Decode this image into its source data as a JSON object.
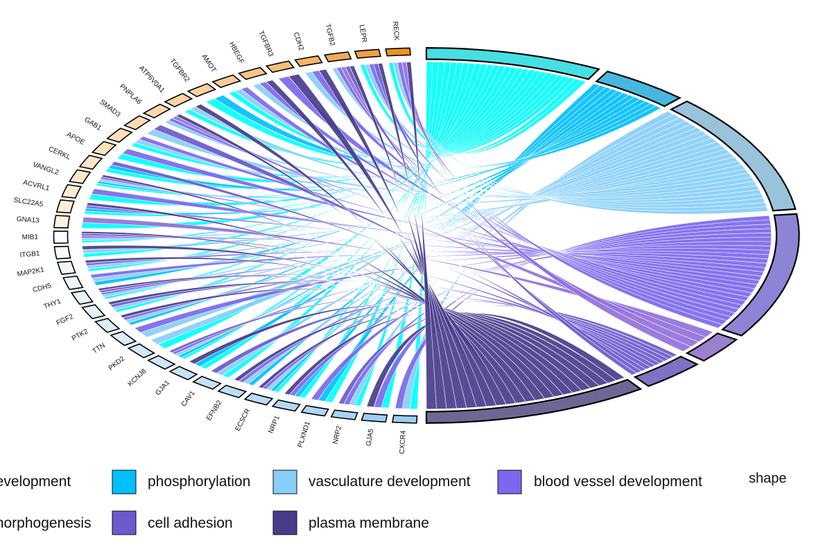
{
  "chart_data": {
    "type": "chord",
    "title": "",
    "genes": [
      "CXCR4",
      "GJA5",
      "NRP2",
      "PLXND1",
      "NRP1",
      "ECSCR",
      "EFNB2",
      "CAV1",
      "GJA1",
      "KCNJ8",
      "PKD2",
      "TTN",
      "PTK2",
      "FGF2",
      "THY1",
      "CDH5",
      "MAP2K1",
      "ITGB1",
      "MIB1",
      "GNA13",
      "SLC22A5",
      "ACVRL1",
      "VANGL2",
      "CERKL",
      "APOE",
      "GAB1",
      "SMAD3",
      "PNPLA6",
      "ATP6V0A1",
      "TGFBR2",
      "AMOT",
      "HBEGF",
      "TGFBR3",
      "CDH2",
      "TGFB2",
      "LEPR",
      "RECK"
    ],
    "gene_fill": [
      "#9fcdf2",
      "#9fcdf2",
      "#a9d3f3",
      "#aed5f4",
      "#b3d8f4",
      "#b9dbf5",
      "#bedef5",
      "#c4e1f6",
      "#c9e4f7",
      "#cee7f8",
      "#d3e9f8",
      "#d8ecf9",
      "#ddeffa",
      "#e2f1fa",
      "#e7f4fb",
      "#ecf6fc",
      "#f1f9fd",
      "#f6fbfe",
      "#fbfdff",
      "#fff1dd",
      "#ffedd6",
      "#ffebd1",
      "#ffe8cc",
      "#ffe5c6",
      "#ffe2c0",
      "#ffdfba",
      "#ffdbb3",
      "#fed8ad",
      "#fdd4a6",
      "#fcd09f",
      "#fbcb97",
      "#f9c48b",
      "#f7bd7e",
      "#f4b46c",
      "#f1aa58",
      "#eea144",
      "#ea961c"
    ],
    "terms": [
      {
        "name": "angiogenesis development",
        "color": "#00ffff",
        "arc": "#46dfe3",
        "value": 44
      },
      {
        "name": "phosphorylation",
        "color": "#00bfff",
        "arc": "#46b8df",
        "value": 22
      },
      {
        "name": "vasculature development",
        "color": "#87cefa",
        "arc": "#99c2db",
        "value": 60
      },
      {
        "name": "blood vessel development",
        "color": "#7b68ee",
        "arc": "#8d84d6",
        "value": 62
      },
      {
        "name": "tube morphogenesis",
        "color": "#9370db",
        "arc": "#9a80cf",
        "value": 13
      },
      {
        "name": "cell adhesion",
        "color": "#6a5acd",
        "arc": "#7c73c4",
        "value": 16
      },
      {
        "name": "plasma membrane",
        "color": "#483d8b",
        "arc": "#6d6893",
        "value": 56
      }
    ],
    "legend": {
      "row1": [
        "development",
        "phosphorylation",
        "vasculature development",
        "blood vessel development"
      ],
      "row2": [
        "morphogenesis",
        "cell adhesion",
        "plasma membrane"
      ],
      "shape_label": "shape"
    }
  }
}
